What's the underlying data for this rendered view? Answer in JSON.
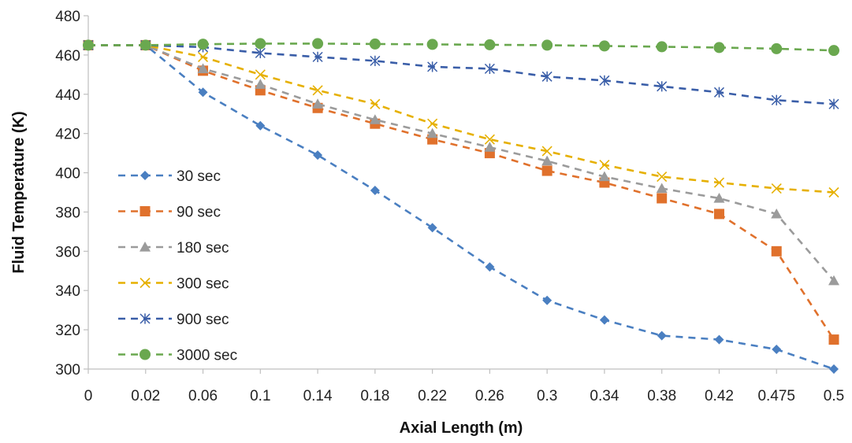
{
  "chart_data": {
    "type": "line",
    "title": "",
    "xlabel": "Axial Length (m)",
    "ylabel": "Fluid Temperature (K)",
    "categories": [
      "0",
      "0.02",
      "0.06",
      "0.1",
      "0.14",
      "0.18",
      "0.22",
      "0.26",
      "0.3",
      "0.34",
      "0.38",
      "0.42",
      "0.475",
      "0.5"
    ],
    "ylim": [
      300,
      480
    ],
    "yticks": [
      300,
      320,
      340,
      360,
      380,
      400,
      420,
      440,
      460,
      480
    ],
    "grid": false,
    "legend_position": "left",
    "series": [
      {
        "name": "30 sec",
        "color": "#4a7fc1",
        "marker": "diamond",
        "values": [
          465,
          465,
          441,
          424,
          409,
          391,
          372,
          352,
          335,
          325,
          317,
          315,
          310,
          300
        ]
      },
      {
        "name": "90 sec",
        "color": "#e0712c",
        "marker": "square",
        "values": [
          465,
          465,
          452,
          442,
          433,
          425,
          417,
          410,
          401,
          395,
          387,
          379,
          360,
          315
        ]
      },
      {
        "name": "180 sec",
        "color": "#9b9b9b",
        "marker": "triangle",
        "values": [
          465,
          465,
          453,
          445,
          435,
          427,
          420,
          413,
          406,
          398,
          392,
          387,
          379,
          345
        ]
      },
      {
        "name": "300 sec",
        "color": "#e6b000",
        "marker": "x",
        "values": [
          465,
          465,
          459,
          450,
          442,
          435,
          425,
          417,
          411,
          404,
          398,
          395,
          392,
          390
        ]
      },
      {
        "name": "900 sec",
        "color": "#3a5ea8",
        "marker": "star",
        "values": [
          465,
          465,
          464,
          461,
          459,
          457,
          454,
          453,
          449,
          447,
          444,
          441,
          437,
          435
        ]
      },
      {
        "name": "3000 sec",
        "color": "#6aa84f",
        "marker": "circle",
        "values": [
          465,
          465,
          465.5,
          465.8,
          465.8,
          465.6,
          465.4,
          465.2,
          465,
          464.6,
          464.2,
          463.8,
          463.2,
          462.3
        ]
      }
    ]
  }
}
